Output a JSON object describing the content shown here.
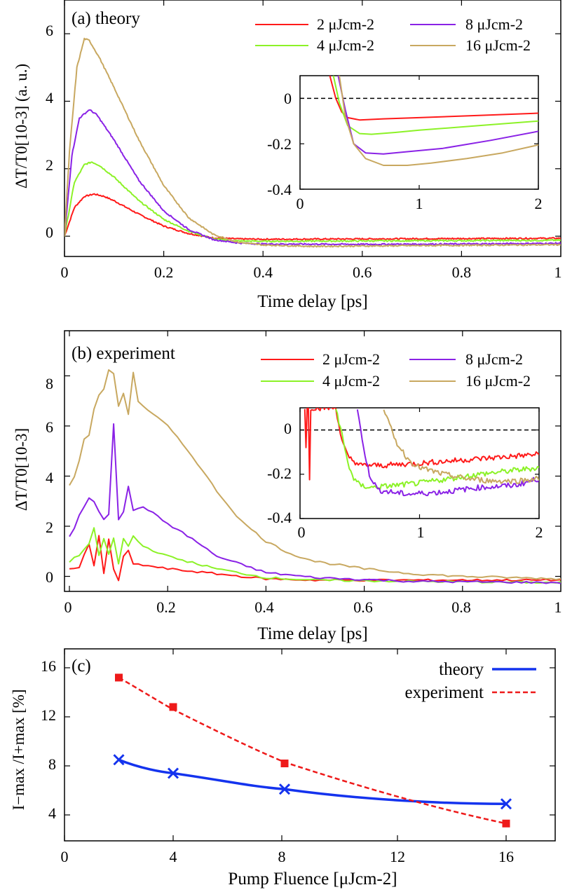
{
  "colors": {
    "2": "#ff1a1a",
    "4": "#8cf227",
    "8": "#8a22e6",
    "16": "#c8a860",
    "theory": "#1433ee",
    "experiment": "#ee1a1a"
  },
  "chart_data": [
    {
      "panel": "a",
      "type": "line",
      "title": "(a) theory",
      "xlabel": "Time delay [ps]",
      "ylabel": "ΔT/T0[10-3] (a. u.)",
      "xlim": [
        0,
        1
      ],
      "ylim": [
        -0.6,
        7
      ],
      "xticks": [
        "0",
        "0.2",
        "0.4",
        "0.6",
        "0.8",
        "1"
      ],
      "yticks": [
        "0",
        "2",
        "4",
        "6"
      ],
      "legend_position": "top-right",
      "series": [
        {
          "name": "2 μJcm-2",
          "key": "2",
          "x": [
            0,
            0.02,
            0.04,
            0.06,
            0.08,
            0.1,
            0.15,
            0.2,
            0.25,
            0.3,
            0.35,
            0.4,
            0.6,
            0.8,
            1.0
          ],
          "y": [
            0,
            0.85,
            1.18,
            1.25,
            1.18,
            1.05,
            0.65,
            0.3,
            0.08,
            -0.05,
            -0.08,
            -0.09,
            -0.08,
            -0.07,
            -0.06
          ]
        },
        {
          "name": "4 μJcm-2",
          "key": "4",
          "x": [
            0,
            0.02,
            0.04,
            0.055,
            0.07,
            0.1,
            0.15,
            0.2,
            0.25,
            0.3,
            0.35,
            0.4,
            0.6,
            0.8,
            1.0
          ],
          "y": [
            0,
            1.6,
            2.12,
            2.2,
            2.1,
            1.75,
            1.05,
            0.5,
            0.15,
            -0.08,
            -0.14,
            -0.15,
            -0.14,
            -0.13,
            -0.12
          ]
        },
        {
          "name": "8 μJcm-2",
          "key": "8",
          "x": [
            0,
            0.015,
            0.03,
            0.05,
            0.065,
            0.1,
            0.15,
            0.2,
            0.25,
            0.3,
            0.35,
            0.4,
            0.6,
            0.8,
            1.0
          ],
          "y": [
            0,
            2.4,
            3.5,
            3.75,
            3.6,
            2.85,
            1.65,
            0.75,
            0.2,
            -0.1,
            -0.2,
            -0.23,
            -0.24,
            -0.23,
            -0.21
          ]
        },
        {
          "name": "16 μJcm-2",
          "key": "16",
          "x": [
            0,
            0.01,
            0.025,
            0.04,
            0.05,
            0.07,
            0.1,
            0.15,
            0.2,
            0.25,
            0.3,
            0.35,
            0.4,
            0.5,
            0.6,
            0.8,
            1.0
          ],
          "y": [
            0,
            2.5,
            5.0,
            5.85,
            5.8,
            5.3,
            4.4,
            2.85,
            1.5,
            0.55,
            0.05,
            -0.18,
            -0.26,
            -0.3,
            -0.29,
            -0.27,
            -0.25
          ]
        }
      ],
      "inset": {
        "xlim": [
          0,
          2
        ],
        "ylim": [
          -0.4,
          0.1
        ],
        "xticks": [
          "0",
          "1",
          "2"
        ],
        "yticks": [
          "0",
          "-0.2",
          "-0.4"
        ],
        "series": [
          {
            "key": "2",
            "x": [
              0.25,
              0.3,
              0.35,
              0.4,
              0.5,
              0.7,
              1.0,
              1.5,
              2.0
            ],
            "y": [
              0.1,
              0.0,
              -0.06,
              -0.085,
              -0.095,
              -0.09,
              -0.085,
              -0.075,
              -0.065
            ]
          },
          {
            "key": "4",
            "x": [
              0.28,
              0.33,
              0.4,
              0.5,
              0.6,
              0.8,
              1.0,
              1.5,
              2.0
            ],
            "y": [
              0.1,
              -0.02,
              -0.12,
              -0.155,
              -0.158,
              -0.15,
              -0.14,
              -0.12,
              -0.1
            ]
          },
          {
            "key": "8",
            "x": [
              0.32,
              0.38,
              0.45,
              0.55,
              0.7,
              0.9,
              1.2,
              1.6,
              2.0
            ],
            "y": [
              0.1,
              -0.05,
              -0.2,
              -0.24,
              -0.245,
              -0.235,
              -0.22,
              -0.185,
              -0.145
            ]
          },
          {
            "key": "16",
            "x": [
              0.33,
              0.38,
              0.45,
              0.55,
              0.7,
              0.9,
              1.1,
              1.4,
              1.7,
              2.0
            ],
            "y": [
              0.1,
              -0.08,
              -0.2,
              -0.265,
              -0.295,
              -0.295,
              -0.285,
              -0.265,
              -0.24,
              -0.205
            ]
          }
        ]
      }
    },
    {
      "panel": "b",
      "type": "line",
      "title": "(b) experiment",
      "xlabel": "Time delay [ps]",
      "ylabel": "ΔT/T0[10-3]",
      "xlim": [
        -0.01,
        1
      ],
      "ylim": [
        -0.6,
        9.8
      ],
      "xticks": [
        "0",
        "0.2",
        "0.4",
        "0.6",
        "0.8",
        "1"
      ],
      "yticks": [
        "0",
        "2",
        "4",
        "6",
        "8"
      ],
      "legend_position": "top-right",
      "series": [
        {
          "name": "2 μJcm-2",
          "key": "2",
          "x": [
            0,
            0.02,
            0.04,
            0.05,
            0.06,
            0.07,
            0.08,
            0.09,
            0.1,
            0.11,
            0.12,
            0.13,
            0.15,
            0.2,
            0.3,
            0.4,
            0.5,
            0.7,
            1.0
          ],
          "y": [
            0.3,
            0.35,
            1.3,
            0.4,
            1.6,
            0.1,
            1.5,
            0.3,
            -0.2,
            0.8,
            1.0,
            0.5,
            0.45,
            0.3,
            0.1,
            -0.1,
            -0.15,
            -0.15,
            -0.15
          ]
        },
        {
          "name": "4 μJcm-2",
          "key": "4",
          "x": [
            0,
            0.02,
            0.04,
            0.05,
            0.06,
            0.07,
            0.08,
            0.09,
            0.1,
            0.11,
            0.12,
            0.13,
            0.15,
            0.2,
            0.3,
            0.4,
            0.5,
            0.7,
            1.0
          ],
          "y": [
            0.6,
            0.85,
            1.3,
            1.9,
            0.8,
            1.5,
            0.9,
            1.5,
            0.5,
            1.5,
            1.2,
            1.6,
            1.2,
            0.8,
            0.3,
            -0.05,
            -0.15,
            -0.2,
            -0.25
          ]
        },
        {
          "name": "8 μJcm-2",
          "key": "8",
          "x": [
            0,
            0.01,
            0.02,
            0.03,
            0.04,
            0.05,
            0.06,
            0.07,
            0.08,
            0.09,
            0.1,
            0.11,
            0.12,
            0.13,
            0.15,
            0.2,
            0.25,
            0.3,
            0.4,
            0.5,
            0.7,
            1.0
          ],
          "y": [
            1.6,
            1.9,
            2.4,
            2.8,
            3.1,
            3.0,
            2.6,
            2.3,
            2.5,
            6.1,
            2.3,
            2.6,
            3.6,
            2.6,
            2.8,
            2.1,
            1.5,
            0.8,
            0.15,
            -0.05,
            -0.2,
            -0.25
          ]
        },
        {
          "name": "16 μJcm-2",
          "key": "16",
          "x": [
            0,
            0.01,
            0.02,
            0.03,
            0.04,
            0.05,
            0.06,
            0.07,
            0.08,
            0.09,
            0.1,
            0.11,
            0.12,
            0.13,
            0.14,
            0.15,
            0.2,
            0.25,
            0.3,
            0.35,
            0.4,
            0.45,
            0.5,
            0.6,
            0.7,
            0.8,
            1.0
          ],
          "y": [
            3.6,
            4.0,
            4.6,
            5.5,
            5.6,
            6.7,
            7.2,
            7.5,
            8.2,
            8.1,
            6.8,
            7.3,
            6.5,
            8.1,
            7.0,
            6.8,
            6.0,
            4.8,
            3.4,
            2.2,
            1.4,
            0.9,
            0.6,
            0.3,
            0.1,
            0.0,
            -0.1
          ]
        }
      ],
      "inset": {
        "xlim": [
          0,
          2
        ],
        "ylim": [
          -0.4,
          0.1
        ],
        "xticks": [
          "0",
          "1",
          "2"
        ],
        "yticks": [
          "0",
          "-0.2",
          "-0.4"
        ],
        "series": [
          {
            "key": "2",
            "x": [
              0.04,
              0.05,
              0.06,
              0.07,
              0.08,
              0.09,
              0.1,
              0.11,
              0.12,
              0.3,
              0.35,
              0.4,
              0.5,
              0.7,
              1.0,
              1.5,
              2.0
            ],
            "y": [
              0.1,
              -0.07,
              0.1,
              0.1,
              -0.22,
              0.1,
              0.1,
              0.1,
              0.1,
              0.1,
              -0.05,
              -0.12,
              -0.16,
              -0.16,
              -0.15,
              -0.13,
              -0.11
            ]
          },
          {
            "key": "4",
            "x": [
              0.3,
              0.35,
              0.4,
              0.45,
              0.5,
              0.6,
              0.8,
              1.0,
              1.5,
              2.0
            ],
            "y": [
              0.1,
              -0.02,
              -0.15,
              -0.22,
              -0.25,
              -0.26,
              -0.25,
              -0.24,
              -0.2,
              -0.17
            ]
          },
          {
            "key": "8",
            "x": [
              0.48,
              0.52,
              0.58,
              0.65,
              0.75,
              0.9,
              1.2,
              1.5,
              1.8,
              2.0
            ],
            "y": [
              0.1,
              -0.05,
              -0.2,
              -0.27,
              -0.28,
              -0.29,
              -0.28,
              -0.26,
              -0.25,
              -0.22
            ]
          },
          {
            "key": "16",
            "x": [
              0.7,
              0.75,
              0.8,
              0.9,
              1.0,
              1.2,
              1.4,
              1.6,
              1.8,
              2.0
            ],
            "y": [
              0.1,
              0.02,
              -0.05,
              -0.13,
              -0.17,
              -0.2,
              -0.22,
              -0.23,
              -0.23,
              -0.22
            ]
          }
        ]
      }
    },
    {
      "panel": "c",
      "type": "line",
      "title": "(c)",
      "xlabel": "Pump Fluence [μJcm-2]",
      "ylabel": "I−max /I+max [%]",
      "xlim": [
        0,
        18
      ],
      "ylim": [
        2,
        16
      ],
      "xticks": [
        "0",
        "4",
        "8",
        "12",
        "16"
      ],
      "yticks": [
        "4",
        "8",
        "12",
        "16"
      ],
      "legend_position": "top-right",
      "series": [
        {
          "name": "theory",
          "key": "theory",
          "style": "solid",
          "marker": "x",
          "x": [
            2,
            4,
            8,
            16
          ],
          "y": [
            8.5,
            7.4,
            6.1,
            4.9
          ]
        },
        {
          "name": "experiment",
          "key": "experiment",
          "style": "dashed",
          "marker": "square",
          "x": [
            2,
            4,
            8,
            16
          ],
          "y": [
            15.2,
            12.8,
            8.2,
            3.3
          ]
        }
      ]
    }
  ]
}
